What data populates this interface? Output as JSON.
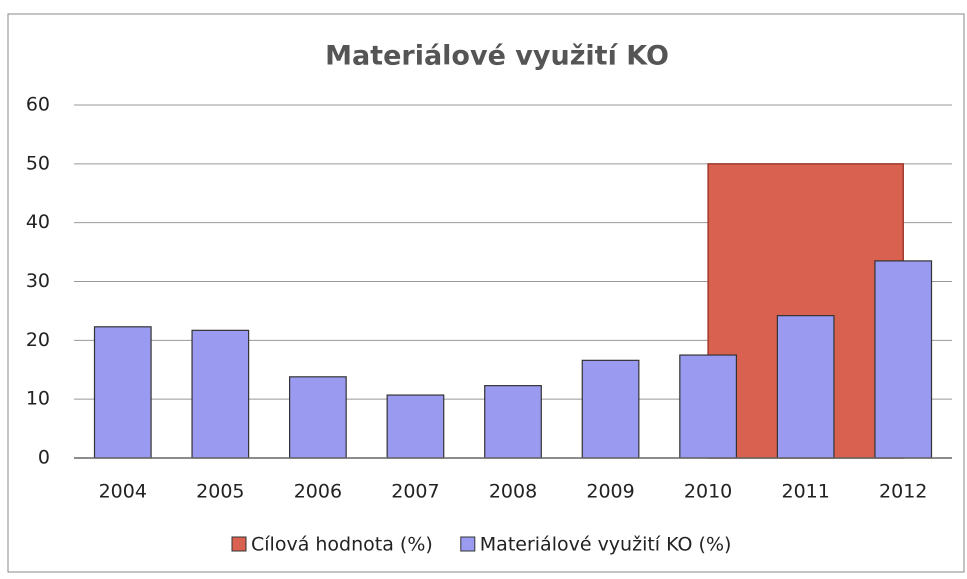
{
  "chart_data": {
    "type": "combo",
    "title": "Materiálové využití KO",
    "categories": [
      "2004",
      "2005",
      "2006",
      "2007",
      "2008",
      "2009",
      "2010",
      "2011",
      "2012"
    ],
    "series": [
      {
        "name": "Cílová hodnota (%)",
        "type": "area",
        "color": "#d9614f",
        "values": [
          null,
          null,
          null,
          null,
          null,
          null,
          50,
          50,
          50
        ]
      },
      {
        "name": "Materiálové využití KO (%)",
        "type": "bar",
        "color": "#9a9af0",
        "values": [
          22.3,
          21.7,
          13.8,
          10.7,
          12.3,
          16.6,
          17.5,
          24.2,
          33.5
        ]
      }
    ],
    "ylim": [
      0,
      60
    ],
    "yticks": [
      0,
      10,
      20,
      30,
      40,
      50,
      60
    ],
    "grid": true,
    "legend": "bottom"
  }
}
